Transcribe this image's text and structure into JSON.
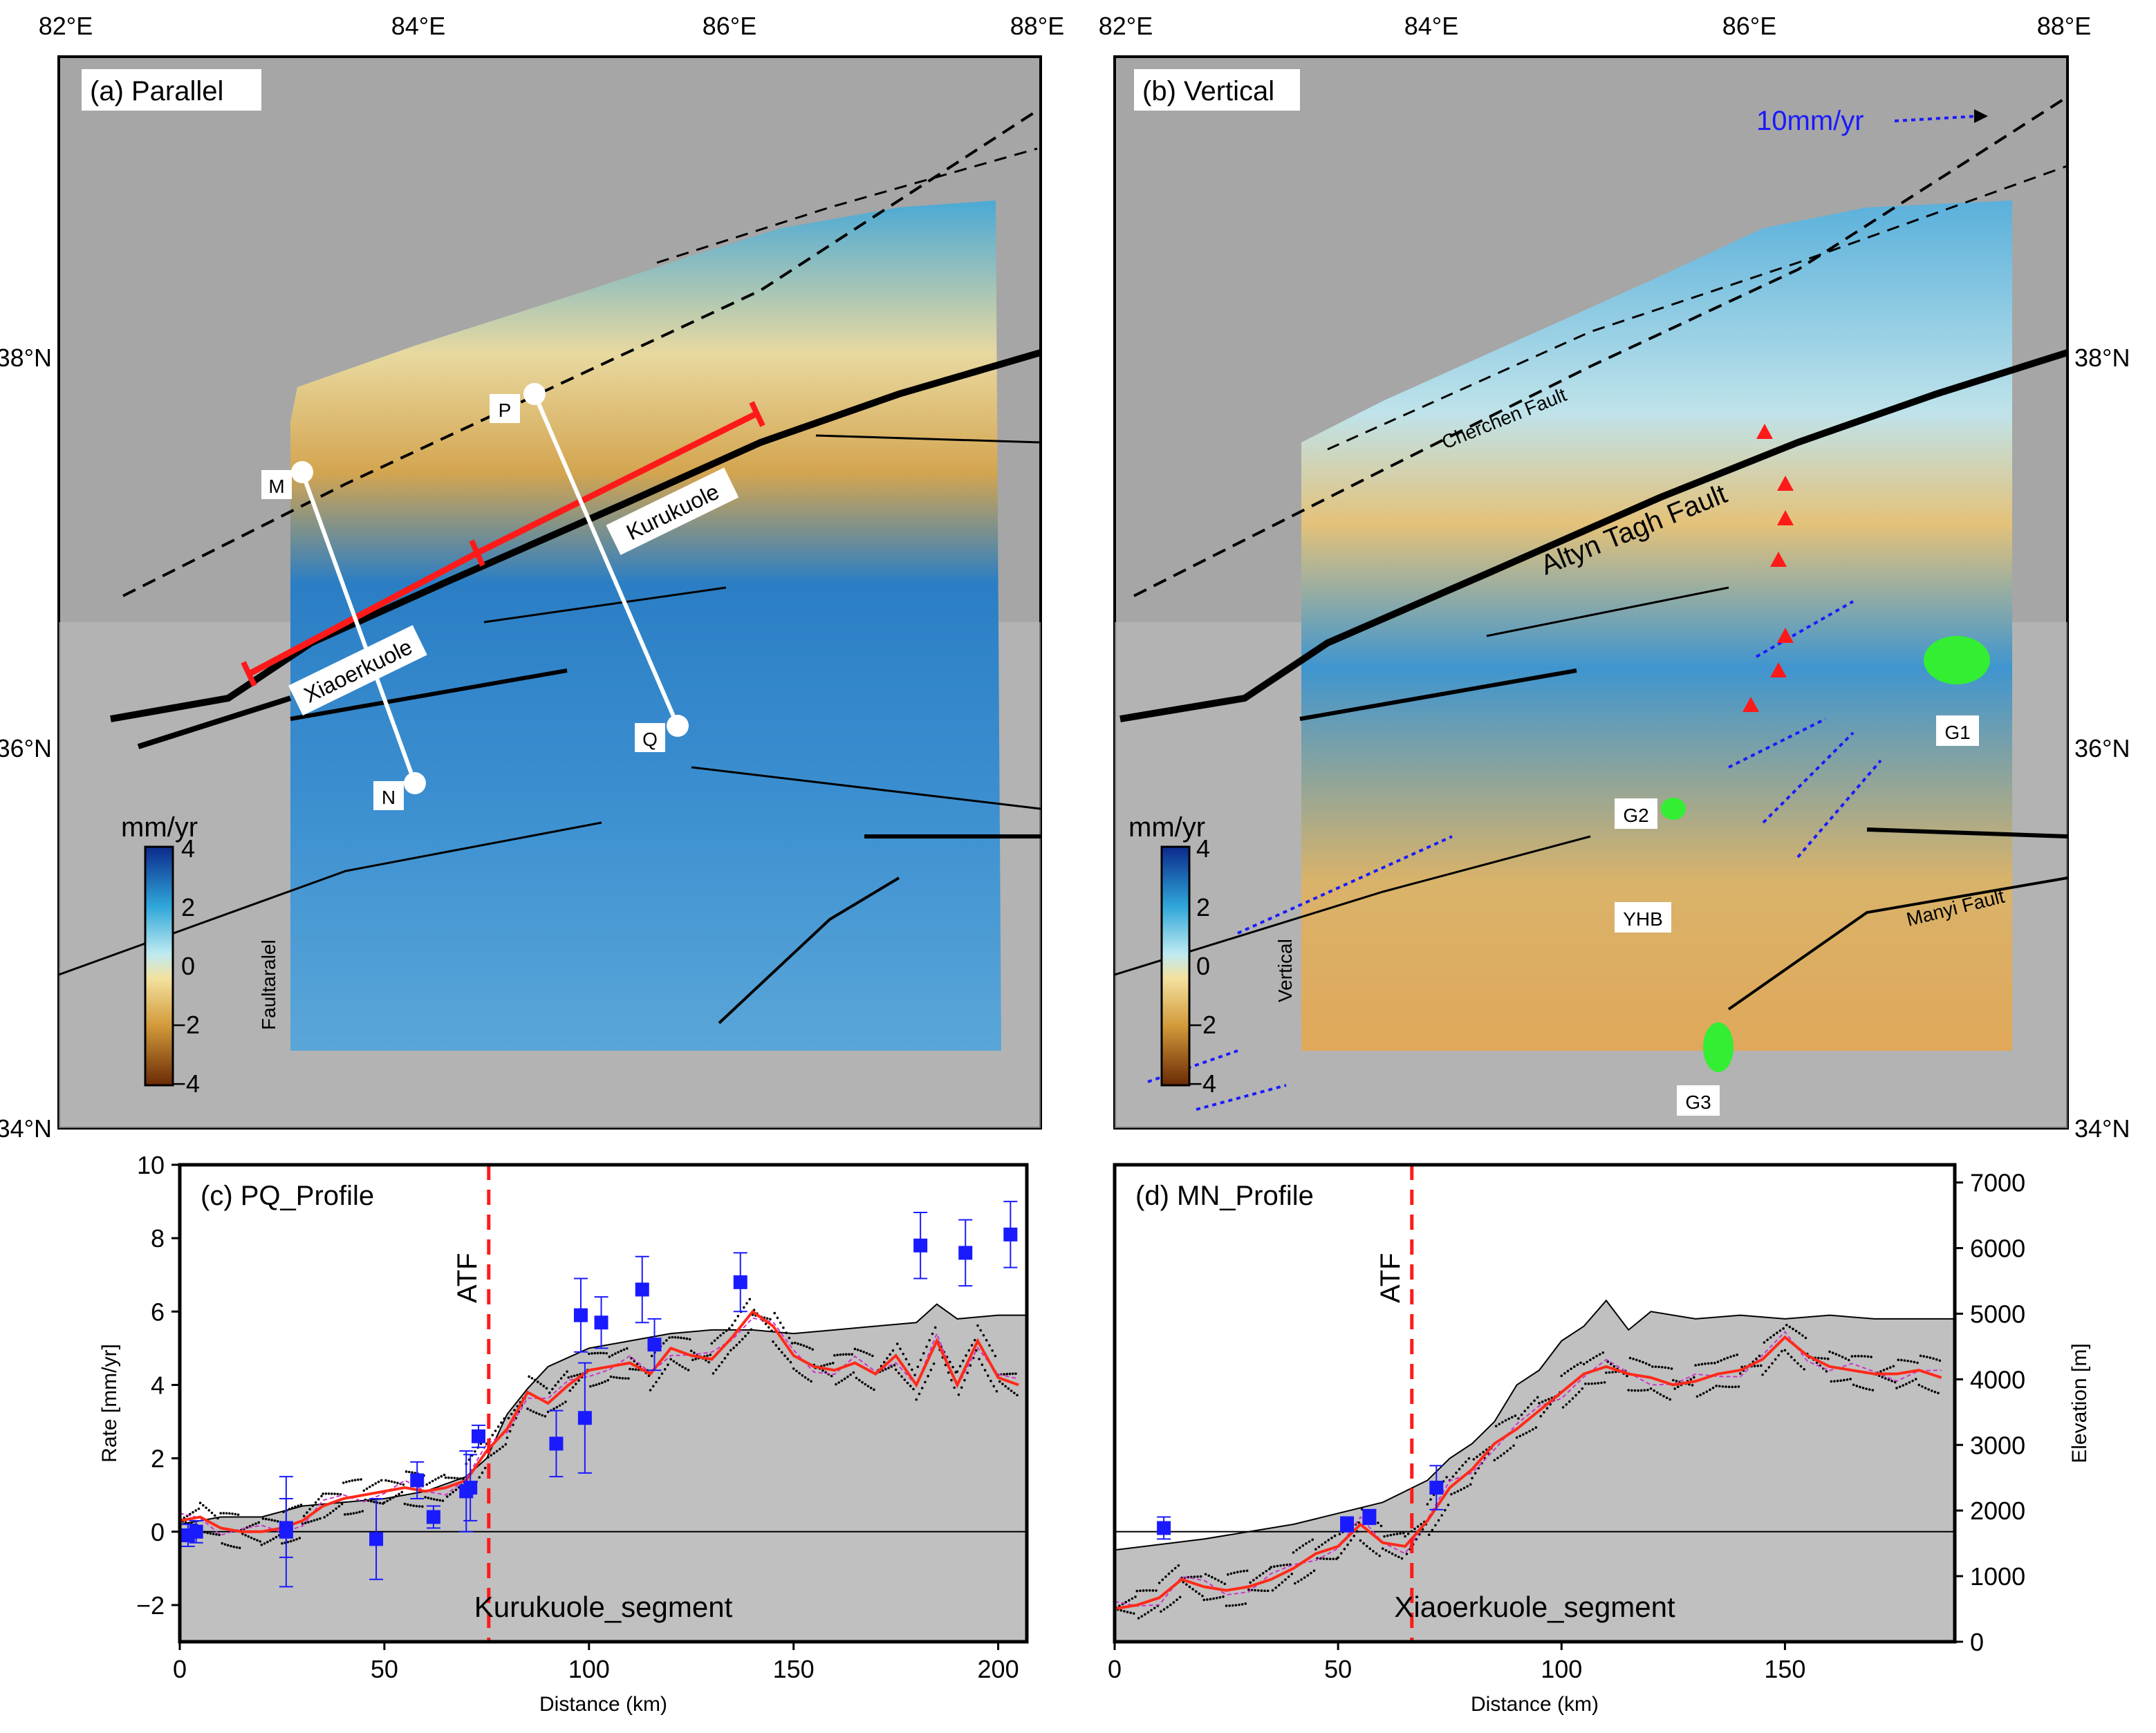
{
  "colors": {
    "background_gray": "#a6a6a6",
    "fault_black": "#000000",
    "segment_red": "#ff1a1a",
    "gps_blue": "#1a1aff",
    "profile_gray": "#c0c0c0",
    "velocity_red": "#ff2a1a",
    "alt_trace_magenta": "#cc33cc",
    "gnss_green": "#33ee33"
  },
  "maps": {
    "lon_ticks": [
      "82°E",
      "84°E",
      "86°E",
      "88°E"
    ],
    "lat_ticks": [
      "38°N",
      "36°N",
      "34°N"
    ],
    "panel_a": {
      "title": "(a) Parallel",
      "colorbar": {
        "unit": "mm/yr",
        "label": "Faultaralel",
        "ticks": [
          "4",
          "2",
          "0",
          "−2",
          "−4"
        ]
      },
      "points": [
        "M",
        "N",
        "P",
        "Q"
      ],
      "segments": [
        "Xiaoerkuole",
        "Kurukuole"
      ]
    },
    "panel_b": {
      "title": "(b) Vertical",
      "scale_label": "10mm/yr",
      "colorbar": {
        "unit": "mm/yr",
        "label": "Vertical",
        "ticks": [
          "4",
          "2",
          "0",
          "−2",
          "−4"
        ]
      },
      "faults": [
        "Cherchen Fault",
        "Altyn Tagh Fault",
        "Manyi Fault"
      ],
      "sites": [
        "G1",
        "G2",
        "G3",
        "YHB"
      ]
    }
  },
  "chart_data": [
    {
      "type": "line",
      "title": "(c) PQ_Profile",
      "xlabel": "Distance (km)",
      "ylabel": "Rate [mm/yr]",
      "xlim": [
        0,
        207
      ],
      "ylim": [
        -3,
        10
      ],
      "xticks": [
        "0",
        "50",
        "100",
        "150",
        "200"
      ],
      "yticks": [
        "−2",
        "0",
        "2",
        "4",
        "6",
        "8",
        "10"
      ],
      "marker_label": "ATF",
      "marker_x": 75.5,
      "segment_label": "Kurukuole_segment",
      "series": [
        {
          "name": "insar_rate",
          "x": [
            0,
            5,
            10,
            15,
            20,
            25,
            30,
            35,
            40,
            45,
            50,
            55,
            60,
            65,
            70,
            75,
            80,
            85,
            90,
            95,
            100,
            105,
            110,
            115,
            120,
            125,
            130,
            135,
            140,
            145,
            150,
            155,
            160,
            165,
            170,
            175,
            180,
            185,
            190,
            195,
            200,
            205
          ],
          "values": [
            0.3,
            0.4,
            0.1,
            0.0,
            0.0,
            0.1,
            0.3,
            0.7,
            0.9,
            1.0,
            1.1,
            1.2,
            1.1,
            1.2,
            1.4,
            2.2,
            2.8,
            3.8,
            3.5,
            4.0,
            4.4,
            4.5,
            4.6,
            4.3,
            5.0,
            4.8,
            4.7,
            5.3,
            6.0,
            5.6,
            4.8,
            4.5,
            4.4,
            4.6,
            4.3,
            4.8,
            4.0,
            5.2,
            4.0,
            5.2,
            4.2,
            4.0
          ]
        },
        {
          "name": "elevation",
          "x": [
            0,
            10,
            20,
            30,
            40,
            50,
            60,
            70,
            75,
            80,
            85,
            90,
            100,
            110,
            120,
            130,
            140,
            150,
            160,
            170,
            180,
            185,
            190,
            200,
            207
          ],
          "values": [
            0.2,
            0.4,
            0.4,
            0.7,
            0.8,
            0.9,
            1.1,
            1.5,
            2.0,
            3.2,
            3.9,
            4.5,
            5.0,
            5.2,
            5.4,
            5.5,
            5.5,
            5.4,
            5.5,
            5.6,
            5.7,
            6.2,
            5.8,
            5.9,
            5.9
          ]
        },
        {
          "name": "gps",
          "x": [
            2,
            4,
            26,
            26,
            48,
            58,
            62,
            70,
            71,
            73,
            92,
            98,
            99,
            103,
            113,
            116,
            137,
            181,
            192,
            203
          ],
          "values": [
            -0.1,
            0.0,
            0.0,
            0.1,
            -0.2,
            1.4,
            0.4,
            1.1,
            1.2,
            2.6,
            2.4,
            5.9,
            3.1,
            5.7,
            6.6,
            5.1,
            6.8,
            7.8,
            7.6,
            8.1
          ],
          "errors": [
            0.3,
            0.3,
            1.5,
            0.8,
            1.1,
            0.5,
            0.3,
            1.1,
            0.9,
            0.3,
            0.9,
            1.0,
            1.5,
            0.7,
            0.9,
            0.7,
            0.8,
            0.9,
            0.9,
            0.9
          ]
        }
      ]
    },
    {
      "type": "line",
      "title": "(d) MN_Profile",
      "xlabel": "Distance (km)",
      "ylabel": "Elevation [m]",
      "xlim": [
        0,
        188
      ],
      "ylim": [
        -3,
        10
      ],
      "xticks": [
        "0",
        "50",
        "100",
        "150"
      ],
      "y2ticks": [
        "0",
        "1000",
        "2000",
        "3000",
        "4000",
        "5000",
        "6000",
        "7000"
      ],
      "marker_label": "ATF",
      "marker_x": 66.5,
      "segment_label": "Xiaoerkuole_segment",
      "series": [
        {
          "name": "insar_rate",
          "x": [
            0,
            5,
            10,
            15,
            20,
            25,
            30,
            35,
            40,
            45,
            50,
            55,
            60,
            65,
            70,
            75,
            80,
            85,
            90,
            95,
            100,
            105,
            110,
            115,
            120,
            125,
            130,
            135,
            140,
            145,
            150,
            155,
            160,
            165,
            170,
            175,
            180,
            185
          ],
          "values": [
            -2.1,
            -2.0,
            -1.8,
            -1.3,
            -1.5,
            -1.6,
            -1.5,
            -1.3,
            -1.0,
            -0.6,
            -0.4,
            0.2,
            -0.3,
            -0.4,
            0.3,
            1.2,
            1.7,
            2.4,
            2.8,
            3.3,
            3.8,
            4.3,
            4.5,
            4.3,
            4.2,
            4.0,
            4.1,
            4.3,
            4.4,
            4.7,
            5.3,
            4.8,
            4.5,
            4.4,
            4.3,
            4.3,
            4.4,
            4.2
          ]
        },
        {
          "name": "elevation",
          "x": [
            0,
            20,
            40,
            60,
            70,
            75,
            80,
            85,
            90,
            95,
            100,
            105,
            110,
            115,
            120,
            130,
            140,
            150,
            160,
            170,
            180,
            188
          ],
          "values": [
            -0.5,
            -0.2,
            0.2,
            0.8,
            1.4,
            2.0,
            2.4,
            3.0,
            4.0,
            4.4,
            5.2,
            5.6,
            6.3,
            5.5,
            6.0,
            5.8,
            5.9,
            5.8,
            5.9,
            5.8,
            5.8,
            5.8
          ]
        },
        {
          "name": "gps",
          "x": [
            11,
            52,
            57,
            72
          ],
          "values": [
            0.1,
            0.2,
            0.4,
            1.2
          ],
          "errors": [
            0.3,
            0.2,
            0.2,
            0.6
          ]
        }
      ]
    }
  ]
}
